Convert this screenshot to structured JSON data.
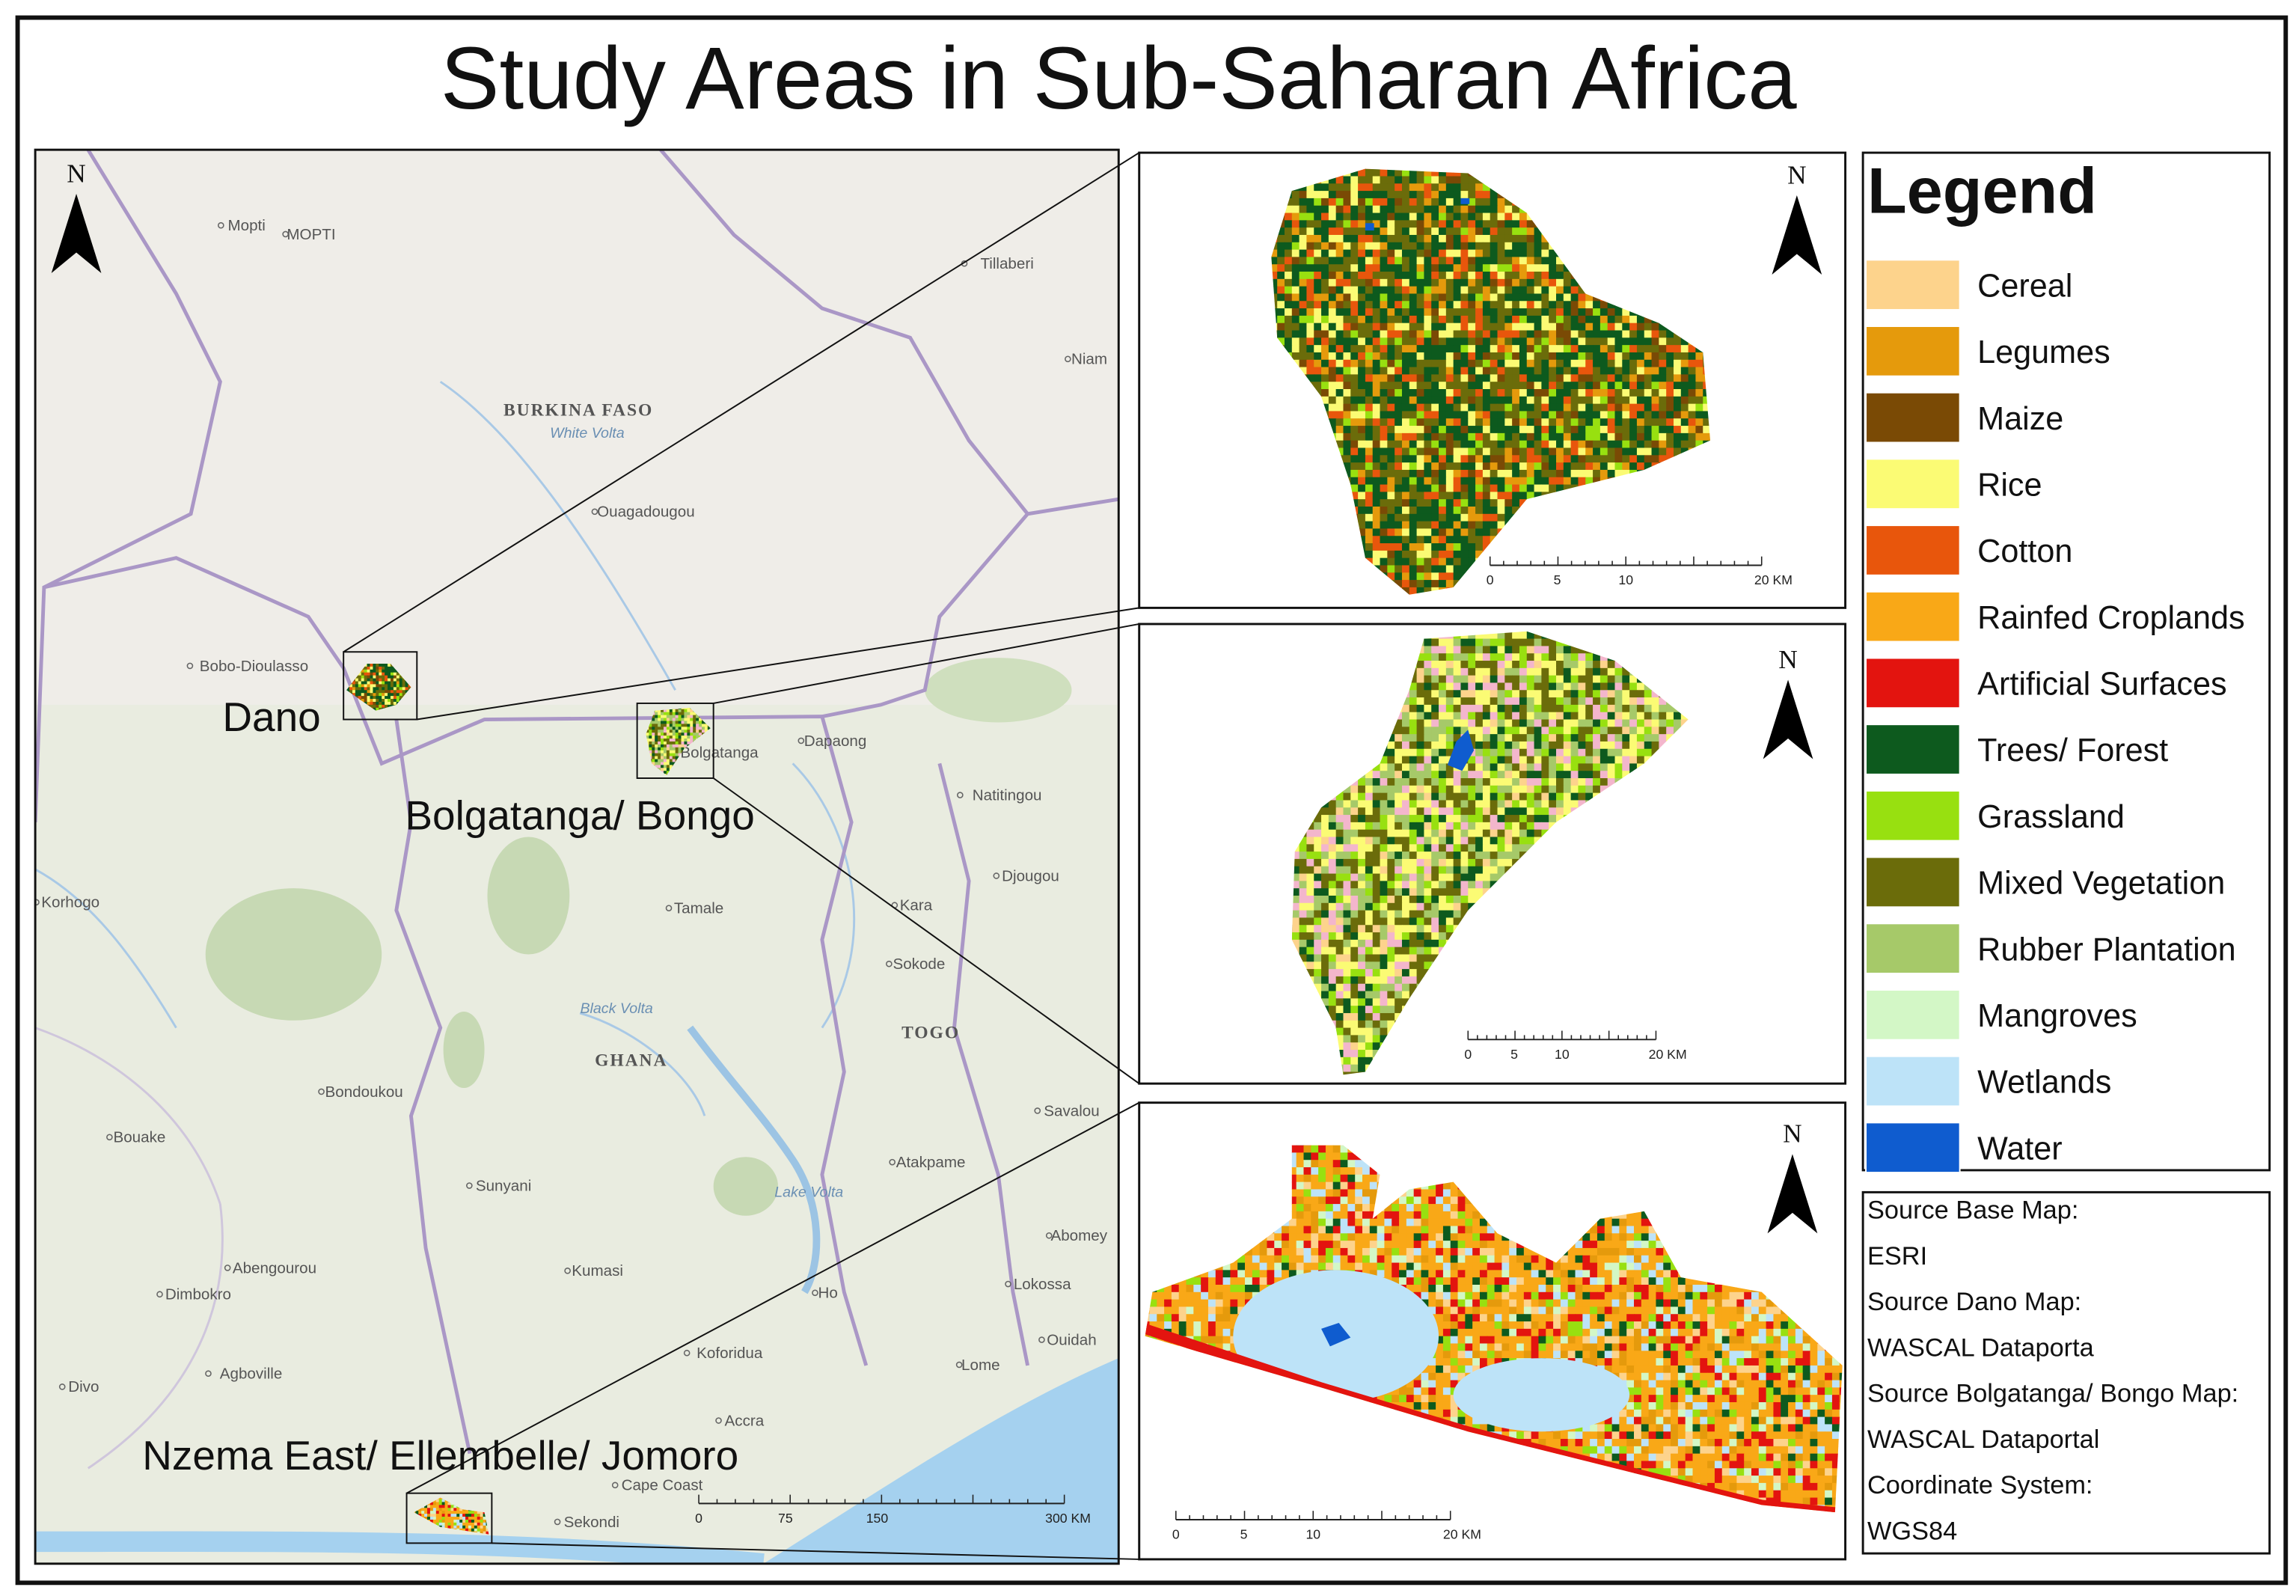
{
  "title": "Study Areas in Sub-Saharan Africa",
  "main_map": {
    "north": "N",
    "study_area_labels": [
      "Dano",
      "Bolgatanga/ Bongo",
      "Nzema East/ Ellembelle/ Jomoro"
    ],
    "place_labels": [
      "Mopti",
      "MOPTI",
      "Tillaberi",
      "Niam",
      "BURKINA FASO",
      "White Volta",
      "Ouagadougou",
      "Bobo-Dioulasso",
      "Dapaong",
      "Bolgatanga",
      "Natitingou",
      "Tamale",
      "Kara",
      "Djougou",
      "Korhogo",
      "Sokode",
      "TOGO",
      "GHANA",
      "Black Volta",
      "Bondoukou",
      "Bouake",
      "Savalou",
      "Atakpame",
      "Sunyani",
      "Kumasi",
      "Abengourou",
      "Dimbokro",
      "Abomey",
      "Lokossa",
      "Ho",
      "Ouidah",
      "Koforidua",
      "Lome",
      "Agboville",
      "Divo",
      "Accra",
      "Cape Coast",
      "Sekondi",
      "Lake Volta"
    ],
    "scale_bar": [
      "0",
      "75",
      "150",
      "300 KM"
    ]
  },
  "insets": [
    {
      "north": "N",
      "scale_bar": [
        "0",
        "5",
        "10",
        "20 KM"
      ]
    },
    {
      "north": "N",
      "scale_bar": [
        "0",
        "5",
        "10",
        "20 KM"
      ]
    },
    {
      "north": "N",
      "scale_bar": [
        "0",
        "5",
        "10",
        "20 KM"
      ]
    }
  ],
  "legend": {
    "title": "Legend",
    "items": [
      {
        "label": "Cereal",
        "color": "#fdd38c"
      },
      {
        "label": "Legumes",
        "color": "#e59a0c"
      },
      {
        "label": "Maize",
        "color": "#7a4a05"
      },
      {
        "label": "Rice",
        "color": "#fbfb74"
      },
      {
        "label": "Cotton",
        "color": "#e8560c"
      },
      {
        "label": "Rainfed Croplands",
        "color": "#f9a817"
      },
      {
        "label": "Artificial Surfaces",
        "color": "#e3140f"
      },
      {
        "label": "Trees/ Forest",
        "color": "#0d5a1e"
      },
      {
        "label": "Grassland",
        "color": "#98e010"
      },
      {
        "label": "Mixed Vegetation",
        "color": "#6b6c0a"
      },
      {
        "label": "Rubber Plantation",
        "color": "#a6c969"
      },
      {
        "label": "Mangroves",
        "color": "#d3f7c6"
      },
      {
        "label": "Wetlands",
        "color": "#bde3f8"
      },
      {
        "label": "Water",
        "color": "#0f5ccf"
      }
    ]
  },
  "sources": [
    "Source Base Map:",
    "ESRI",
    "Source Dano Map:",
    "WASCAL Dataporta",
    "Source Bolgatanga/ Bongo Map:",
    "WASCAL Dataportal",
    "Coordinate System:",
    "WGS84"
  ]
}
